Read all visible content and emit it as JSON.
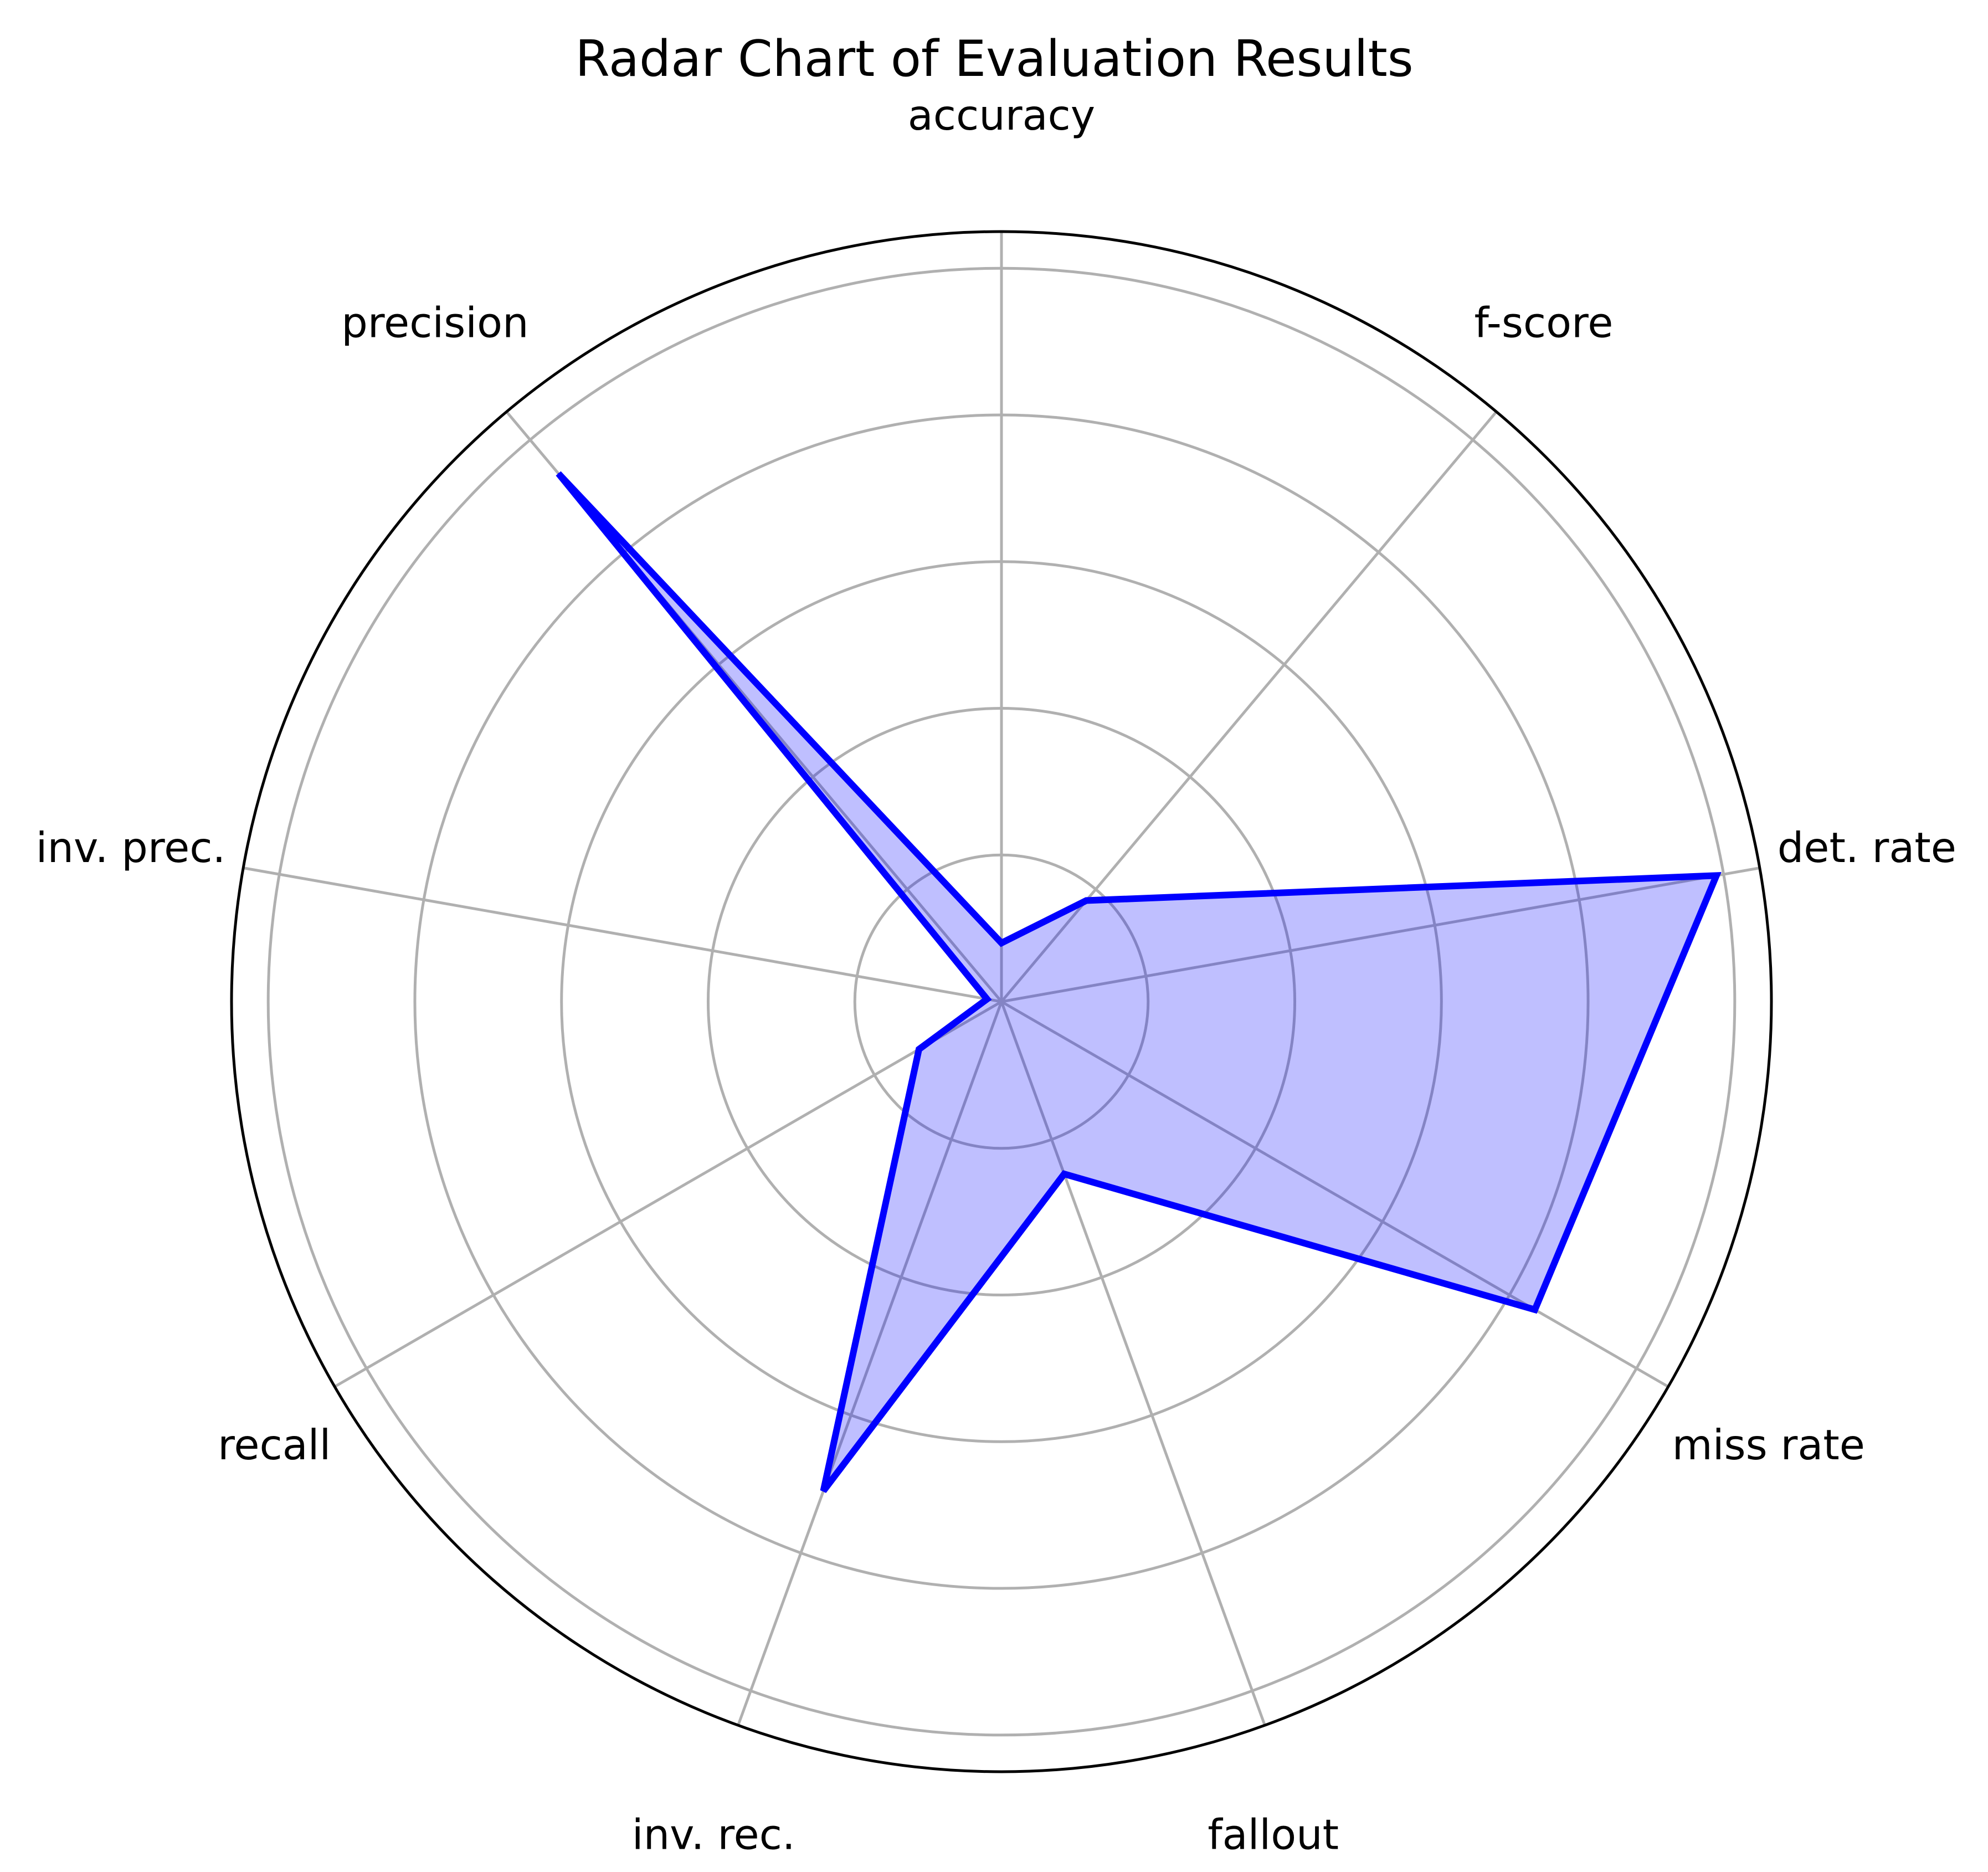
{
  "chart_data": {
    "type": "radar",
    "title": "Radar Chart of Evaluation Results",
    "categories": [
      "accuracy",
      "f-score",
      "det. rate",
      "miss rate",
      "fallout",
      "inv. rec.",
      "recall",
      "inv. prec.",
      "precision"
    ],
    "series": [
      {
        "values": [
          0.08,
          0.18,
          0.99,
          0.84,
          0.25,
          0.71,
          0.13,
          0.02,
          0.94
        ]
      }
    ],
    "rlim": [
      0,
      1.05
    ],
    "rticks": [
      0.2,
      0.4,
      0.6,
      0.8,
      1.0
    ],
    "grid": true,
    "legend": "none",
    "colors": {
      "line": "#0000ff",
      "fill": "#0000ff",
      "fill_opacity": 0.25,
      "grid": "#b0b0b0",
      "frame": "#000000"
    }
  }
}
